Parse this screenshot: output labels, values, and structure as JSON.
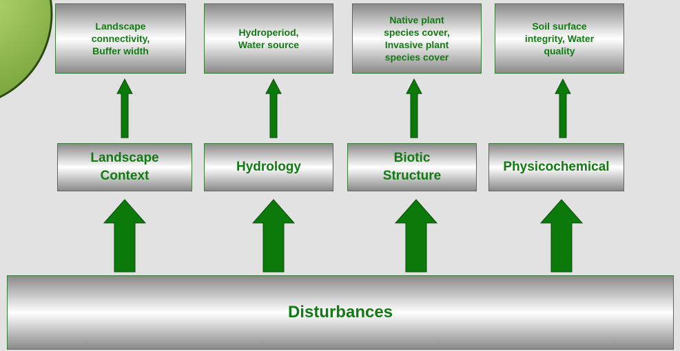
{
  "top_boxes": [
    {
      "lines": [
        "Landscape",
        "connectivity,",
        "Buffer width"
      ]
    },
    {
      "lines": [
        "Hydroperiod,",
        "Water source"
      ]
    },
    {
      "lines": [
        "Native plant",
        "species cover,",
        "Invasive plant",
        "species cover"
      ]
    },
    {
      "lines": [
        "Soil surface",
        "integrity, Water",
        "quality"
      ]
    }
  ],
  "middle_boxes": [
    {
      "lines": [
        "Landscape",
        "Context"
      ]
    },
    {
      "lines": [
        "Hydrology"
      ]
    },
    {
      "lines": [
        "Biotic",
        "Structure"
      ]
    },
    {
      "lines": [
        "Physicochemical"
      ]
    }
  ],
  "bottom_box": {
    "label": "Disturbances"
  }
}
